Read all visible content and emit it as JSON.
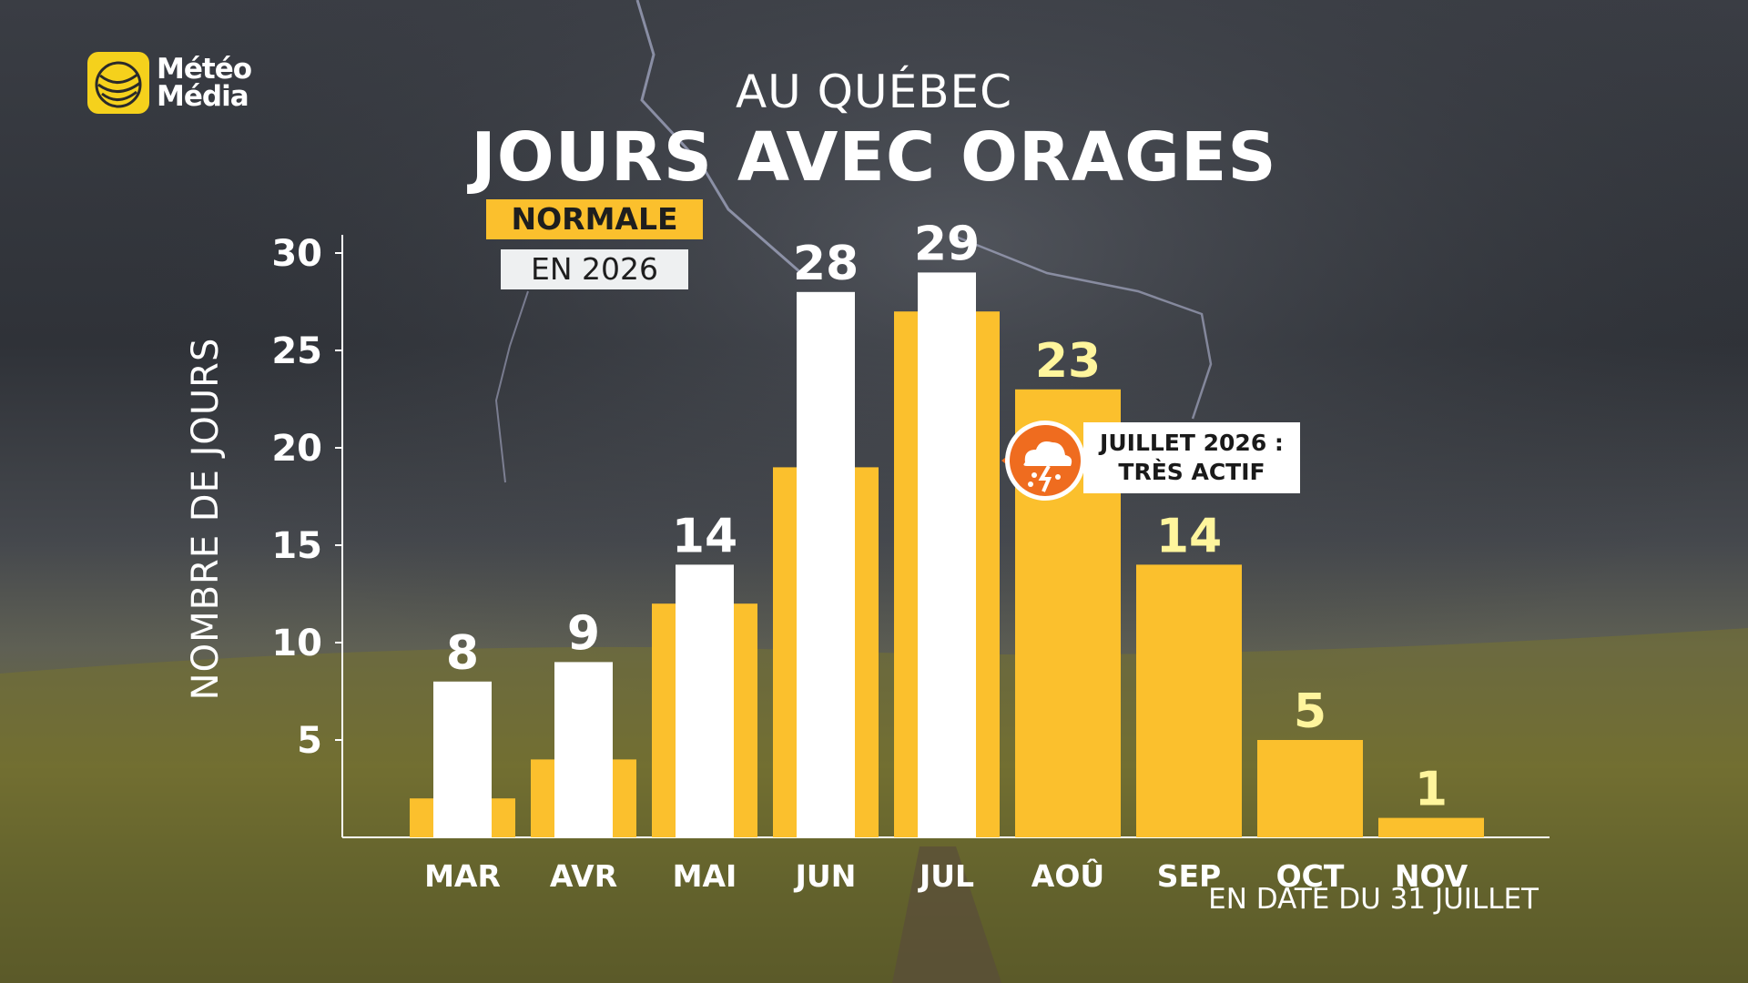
{
  "brand": {
    "line1": "Météo",
    "line2": "Média",
    "color": "#f5d11c"
  },
  "subtitle": "AU QUÉBEC",
  "title": "JOURS AVEC ORAGES",
  "legend": {
    "normal_label": "NORMALE",
    "current_label": "EN 2026"
  },
  "callout": {
    "line1": "JUILLET 2026 :",
    "line2": "TRÈS ACTIF",
    "icon": "thunderstorm-icon"
  },
  "footnote": "EN DATE DU 31 JUILLET",
  "colors": {
    "normal": "#fbc02d",
    "current": "#ffffff",
    "highlight_label": "#fff59d"
  },
  "chart_data": {
    "type": "bar",
    "title": "JOURS AVEC ORAGES",
    "ylabel": "NOMBRE DE JOURS",
    "xlabel": "",
    "ylim": [
      0,
      30
    ],
    "yticks": [
      5,
      10,
      15,
      20,
      25,
      30
    ],
    "categories": [
      "MAR",
      "AVR",
      "MAI",
      "JUN",
      "JUL",
      "AOÛ",
      "SEP",
      "OCT",
      "NOV"
    ],
    "series": [
      {
        "name": "NORMALE",
        "values": [
          2,
          4,
          12,
          19,
          27,
          23,
          14,
          5,
          1
        ]
      },
      {
        "name": "EN 2026",
        "values": [
          8,
          9,
          14,
          28,
          29,
          null,
          null,
          null,
          null
        ]
      }
    ],
    "data_labels": [
      "8",
      "9",
      "14",
      "28",
      "29",
      "23",
      "14",
      "5",
      "1"
    ],
    "grid": false,
    "legend_position": "top-left"
  }
}
